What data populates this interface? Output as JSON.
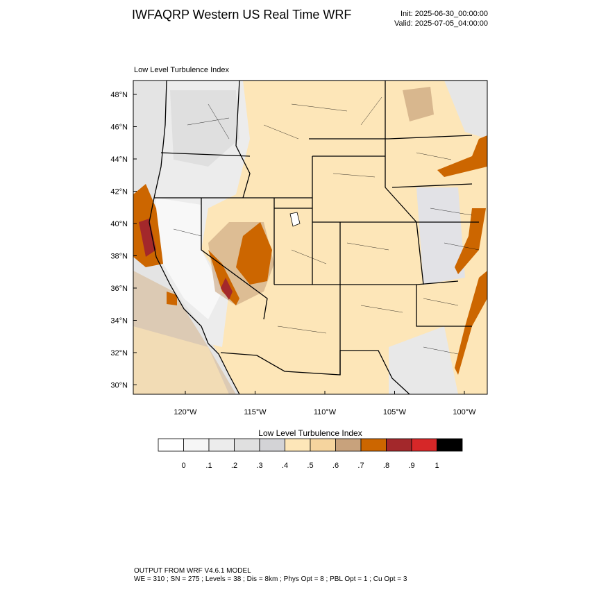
{
  "header": {
    "title": "IWFAQRP Western US Real Time WRF",
    "init": "Init: 2025-06-30_00:00:00",
    "valid": "Valid: 2025-07-05_04:00:00"
  },
  "map": {
    "label": "Low Level Turbulence Index",
    "lat_labels": [
      "48°N",
      "46°N",
      "44°N",
      "42°N",
      "40°N",
      "38°N",
      "36°N",
      "34°N",
      "32°N",
      "30°N"
    ],
    "lon_labels": [
      "120°W",
      "115°W",
      "110°W",
      "105°W",
      "100°W"
    ]
  },
  "colorbar": {
    "title": "Low Level Turbulence Index",
    "colors": [
      "#ffffff",
      "#f6f6f6",
      "#ececec",
      "#e0e0e0",
      "#d3d3d6",
      "#fde6b8",
      "#f5d49e",
      "#c8a27c",
      "#cc6600",
      "#a3282b",
      "#d62728",
      "#000000"
    ],
    "labels": [
      "0",
      ".1",
      ".2",
      ".3",
      ".4",
      ".5",
      ".6",
      ".7",
      ".8",
      ".9",
      "1"
    ]
  },
  "footer": {
    "line1": "OUTPUT FROM WRF V4.6.1 MODEL",
    "line2": "WE = 310 ; SN = 275 ; Levels = 38 ; Dis = 8km ; Phys Opt = 8 ; PBL Opt = 1 ; Cu Opt = 3"
  }
}
